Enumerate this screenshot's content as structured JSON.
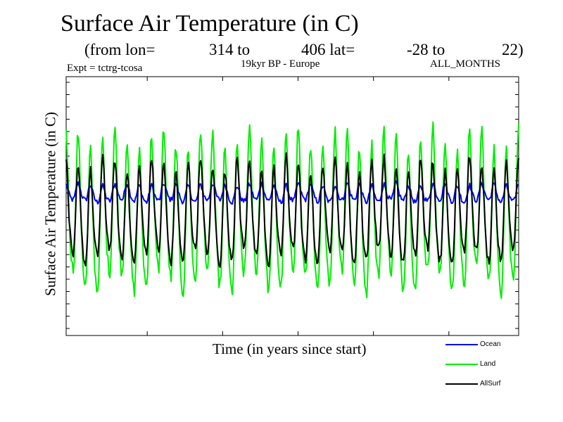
{
  "header": {
    "title": "Surface Air Temperature (in C)",
    "from_lon_label": "(from lon=",
    "lon_start": "314 to",
    "lon_end": "406 lat=",
    "lat_start": "-28 to",
    "lat_end": "22)",
    "experiment": "Expt = tctrg-tcosa",
    "period": "19kyr BP - Europe",
    "months": "ALL_MONTHS"
  },
  "chart_data": {
    "type": "line",
    "title": "Surface Air Temperature (in C)",
    "xlabel": "Time (in years since start)",
    "ylabel": "Surface Air Temperature (in C)",
    "x_unit": "years since start",
    "x_range": [
      0,
      37
    ],
    "tick_labels_shown": false,
    "cycles_per_series": 37,
    "legend_position": "bottom-right",
    "series": [
      {
        "name": "Ocean",
        "color": "#0000ff",
        "seasonal_max": 3.5,
        "seasonal_min": 2.2,
        "noise": 0.18
      },
      {
        "name": "Land",
        "color": "#00ee00",
        "seasonal_max": 6.8,
        "seasonal_min": -4.6,
        "noise": 0.45
      },
      {
        "name": "AllSurf",
        "color": "#000000",
        "seasonal_max": 5.0,
        "seasonal_min": -2.4,
        "noise": 0.3
      }
    ]
  }
}
